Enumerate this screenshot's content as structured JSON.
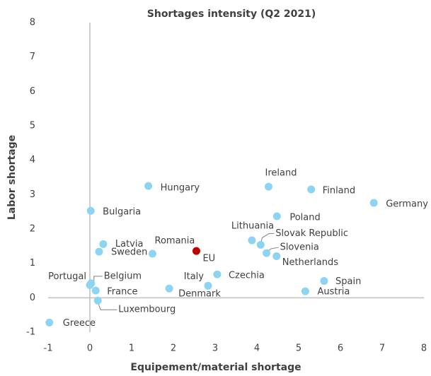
{
  "chart_data": {
    "type": "scatter",
    "title": "Shortages intensity (Q2 2021)",
    "x_label": "Equipement/material shortage",
    "y_label": "Labor shortage",
    "labels": [
      "Greece",
      "Bulgaria",
      "Hungary",
      "Latvia",
      "Sweden",
      "Romania",
      "EU",
      "Portugal",
      "Belgium",
      "France",
      "Luxembourg",
      "Denmark",
      "Italy",
      "Czechia",
      "Lithuania",
      "Slovak Republic",
      "Slovenia",
      "Netherlands",
      "Poland",
      "Ireland",
      "Finland",
      "Germany",
      "Spain",
      "Austria"
    ],
    "x": [
      -0.97,
      0.02,
      1.4,
      0.32,
      0.22,
      1.5,
      2.55,
      0.0,
      0.03,
      0.14,
      0.19,
      1.9,
      2.83,
      3.05,
      3.88,
      4.09,
      4.23,
      4.47,
      4.48,
      4.28,
      5.3,
      6.8,
      5.61,
      5.16
    ],
    "values": [
      -0.72,
      2.53,
      3.25,
      1.56,
      1.34,
      1.28,
      1.36,
      0.37,
      0.42,
      0.21,
      -0.08,
      0.27,
      0.35,
      0.68,
      1.67,
      1.54,
      1.3,
      1.21,
      2.37,
      3.23,
      3.15,
      2.76,
      0.49,
      0.19
    ],
    "colors": [
      "#8dd4f2",
      "#8dd4f2",
      "#8dd4f2",
      "#8dd4f2",
      "#8dd4f2",
      "#8dd4f2",
      "#c00000",
      "#8dd4f2",
      "#8dd4f2",
      "#8dd4f2",
      "#8dd4f2",
      "#8dd4f2",
      "#8dd4f2",
      "#8dd4f2",
      "#8dd4f2",
      "#8dd4f2",
      "#8dd4f2",
      "#8dd4f2",
      "#8dd4f2",
      "#8dd4f2",
      "#8dd4f2",
      "#8dd4f2",
      "#8dd4f2",
      "#8dd4f2"
    ],
    "xlim": [
      -1,
      8
    ],
    "ylim": [
      -1,
      8
    ],
    "xticks": [
      -1,
      0,
      1,
      2,
      3,
      4,
      5,
      6,
      7,
      8
    ],
    "yticks": [
      -1,
      0,
      1,
      2,
      3,
      4,
      5,
      6,
      7,
      8
    ]
  }
}
